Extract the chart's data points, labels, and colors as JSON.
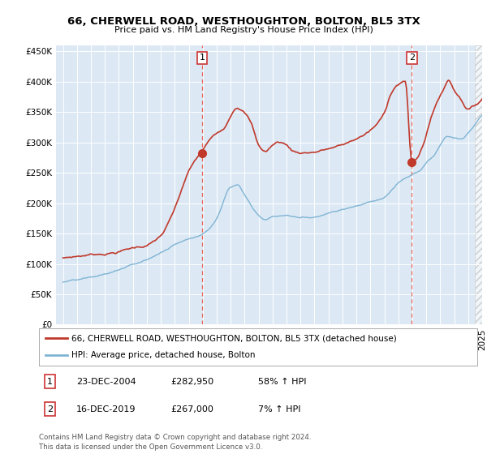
{
  "title": "66, CHERWELL ROAD, WESTHOUGHTON, BOLTON, BL5 3TX",
  "subtitle": "Price paid vs. HM Land Registry's House Price Index (HPI)",
  "sale1_date": "23-DEC-2004",
  "sale1_price": 282950,
  "sale1_hpi": "58% ↑ HPI",
  "sale1_label": "1",
  "sale2_date": "16-DEC-2019",
  "sale2_price": 267000,
  "sale2_hpi": "7% ↑ HPI",
  "sale2_label": "2",
  "legend_line1": "66, CHERWELL ROAD, WESTHOUGHTON, BOLTON, BL5 3TX (detached house)",
  "legend_line2": "HPI: Average price, detached house, Bolton",
  "footer": "Contains HM Land Registry data © Crown copyright and database right 2024.\nThis data is licensed under the Open Government Licence v3.0.",
  "line_color_red": "#c0392b",
  "line_color_blue": "#7fb3d3",
  "dashed_color": "#e74c3c",
  "background_color": "#dce9f5",
  "hatch_color": "#cccccc",
  "ylim_min": 0,
  "ylim_max": 460000,
  "yticks": [
    0,
    50000,
    100000,
    150000,
    200000,
    250000,
    300000,
    350000,
    400000,
    450000
  ],
  "sale1_x": 2004.97,
  "sale2_x": 2019.96,
  "xmin": 1995.0,
  "xmax": 2025.0
}
